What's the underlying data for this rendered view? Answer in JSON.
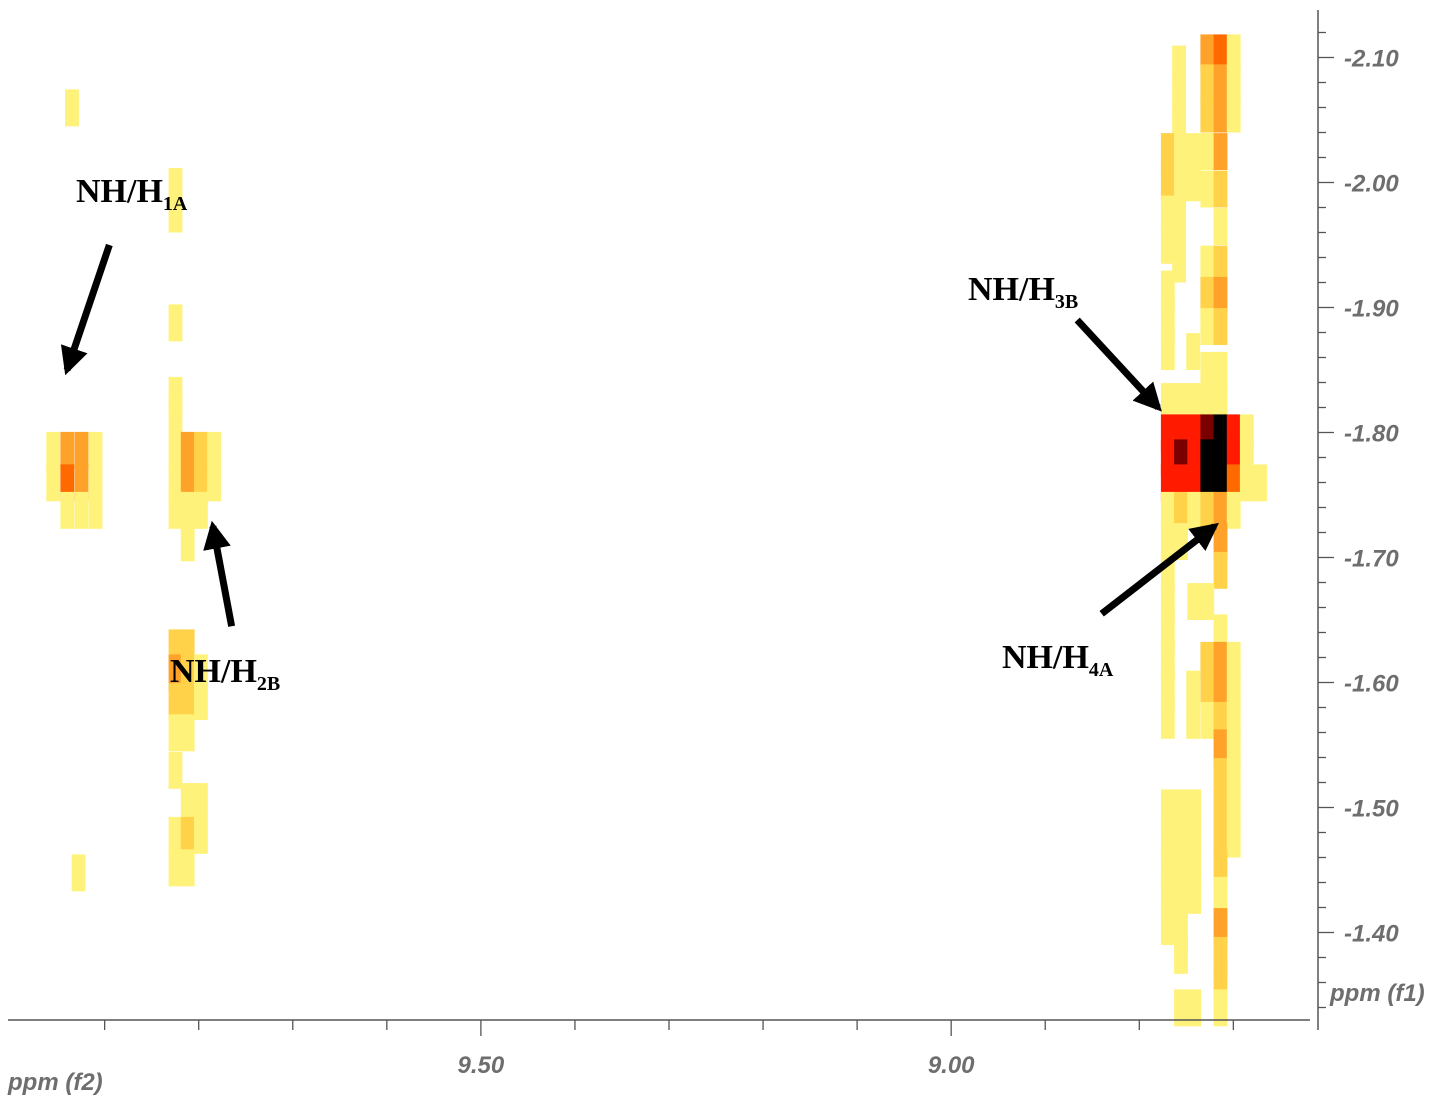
{
  "chart_data": {
    "type": "heatmap",
    "title": "",
    "xlabel": "ppm (f2)",
    "ylabel": "ppm (f1)",
    "x_axis": {
      "range": [
        9.99,
        8.61
      ],
      "direction": "reversed",
      "tick_labels": [
        "9.50",
        "9.00"
      ],
      "tick_values": [
        9.5,
        9.0
      ]
    },
    "y_axis": {
      "range": [
        -2.13,
        -1.33
      ],
      "side": "right",
      "tick_labels": [
        "-2.10",
        "-2.00",
        "-1.90",
        "-1.80",
        "-1.70",
        "-1.60",
        "-1.50",
        "-1.40"
      ],
      "tick_values": [
        -2.1,
        -2.0,
        -1.9,
        -1.8,
        -1.7,
        -1.6,
        -1.5,
        -1.4
      ]
    },
    "grid": false,
    "cell": {
      "dx": 0.014,
      "dy": 0.029
    },
    "colors": {
      "level1": "#fff27a",
      "level2": "#ffd24a",
      "level3": "#ffa22a",
      "level4": "#ff6a00",
      "level5": "#ff1a00",
      "level6": "#7a0000",
      "level7": "#000000",
      "tick": "#555555",
      "text": "#6e6e6e"
    },
    "cells": [
      [
        9.935,
        -2.06,
        1
      ],
      [
        9.825,
        -1.997,
        1
      ],
      [
        9.825,
        -1.975,
        1
      ],
      [
        9.825,
        -1.888,
        1
      ],
      [
        9.825,
        -1.83,
        1
      ],
      [
        9.825,
        -1.815,
        1
      ],
      [
        9.955,
        -1.786,
        1
      ],
      [
        9.94,
        -1.786,
        3
      ],
      [
        9.925,
        -1.786,
        3
      ],
      [
        9.91,
        -1.786,
        1
      ],
      [
        9.955,
        -1.76,
        1
      ],
      [
        9.94,
        -1.76,
        4
      ],
      [
        9.925,
        -1.76,
        3
      ],
      [
        9.91,
        -1.76,
        1
      ],
      [
        9.94,
        -1.738,
        1
      ],
      [
        9.925,
        -1.738,
        1
      ],
      [
        9.91,
        -1.738,
        1
      ],
      [
        9.825,
        -1.786,
        1
      ],
      [
        9.812,
        -1.786,
        3
      ],
      [
        9.798,
        -1.786,
        2
      ],
      [
        9.784,
        -1.786,
        1
      ],
      [
        9.825,
        -1.76,
        1
      ],
      [
        9.812,
        -1.76,
        3
      ],
      [
        9.798,
        -1.76,
        2
      ],
      [
        9.784,
        -1.76,
        1
      ],
      [
        9.825,
        -1.738,
        1
      ],
      [
        9.812,
        -1.738,
        1
      ],
      [
        9.798,
        -1.738,
        1
      ],
      [
        9.812,
        -1.712,
        1
      ],
      [
        9.825,
        -1.628,
        2
      ],
      [
        9.812,
        -1.628,
        2
      ],
      [
        9.825,
        -1.608,
        3
      ],
      [
        9.812,
        -1.608,
        2
      ],
      [
        9.798,
        -1.608,
        1
      ],
      [
        9.825,
        -1.585,
        2
      ],
      [
        9.812,
        -1.585,
        2
      ],
      [
        9.798,
        -1.585,
        1
      ],
      [
        9.825,
        -1.56,
        1
      ],
      [
        9.812,
        -1.56,
        1
      ],
      [
        9.825,
        -1.53,
        1
      ],
      [
        9.812,
        -1.505,
        1
      ],
      [
        9.798,
        -1.505,
        1
      ],
      [
        9.825,
        -1.478,
        1
      ],
      [
        9.812,
        -1.478,
        2
      ],
      [
        9.798,
        -1.478,
        1
      ],
      [
        9.825,
        -1.452,
        1
      ],
      [
        9.812,
        -1.452,
        1
      ],
      [
        9.928,
        -1.448,
        1
      ],
      [
        8.758,
        -2.095,
        1
      ],
      [
        8.758,
        -2.07,
        1
      ],
      [
        8.758,
        -2.045,
        1
      ],
      [
        8.758,
        -2.02,
        1
      ],
      [
        8.758,
        -1.99,
        1
      ],
      [
        8.758,
        -1.962,
        1
      ],
      [
        8.758,
        -1.935,
        1
      ],
      [
        8.77,
        -2.025,
        2
      ],
      [
        8.77,
        -2.0,
        2
      ],
      [
        8.77,
        -1.975,
        1
      ],
      [
        8.77,
        -1.95,
        1
      ],
      [
        8.756,
        -2.025,
        1
      ],
      [
        8.756,
        -2.0,
        1
      ],
      [
        8.742,
        -2.025,
        1
      ],
      [
        8.742,
        -2.0,
        1
      ],
      [
        8.77,
        -1.915,
        1
      ],
      [
        8.77,
        -1.89,
        1
      ],
      [
        8.77,
        -1.865,
        1
      ],
      [
        8.743,
        -1.865,
        1
      ],
      [
        8.728,
        -2.104,
        3
      ],
      [
        8.714,
        -2.104,
        4
      ],
      [
        8.7,
        -2.104,
        1
      ],
      [
        8.728,
        -2.08,
        2
      ],
      [
        8.714,
        -2.08,
        3
      ],
      [
        8.7,
        -2.08,
        1
      ],
      [
        8.728,
        -2.055,
        2
      ],
      [
        8.714,
        -2.055,
        3
      ],
      [
        8.7,
        -2.055,
        1
      ],
      [
        8.728,
        -2.025,
        1
      ],
      [
        8.714,
        -2.025,
        3
      ],
      [
        8.728,
        -1.995,
        1
      ],
      [
        8.714,
        -1.995,
        2
      ],
      [
        8.714,
        -1.965,
        1
      ],
      [
        8.728,
        -1.935,
        1
      ],
      [
        8.714,
        -1.935,
        2
      ],
      [
        8.728,
        -1.91,
        2
      ],
      [
        8.714,
        -1.91,
        3
      ],
      [
        8.728,
        -1.885,
        1
      ],
      [
        8.714,
        -1.885,
        2
      ],
      [
        8.728,
        -1.85,
        1
      ],
      [
        8.714,
        -1.85,
        1
      ],
      [
        8.77,
        -1.825,
        1
      ],
      [
        8.756,
        -1.825,
        1
      ],
      [
        8.742,
        -1.825,
        1
      ],
      [
        8.728,
        -1.825,
        1
      ],
      [
        8.714,
        -1.825,
        1
      ],
      [
        8.77,
        -1.8,
        5
      ],
      [
        8.756,
        -1.8,
        5
      ],
      [
        8.742,
        -1.8,
        5
      ],
      [
        8.728,
        -1.8,
        6
      ],
      [
        8.714,
        -1.8,
        7
      ],
      [
        8.7,
        -1.8,
        5
      ],
      [
        8.686,
        -1.8,
        1
      ],
      [
        8.77,
        -1.78,
        5
      ],
      [
        8.756,
        -1.78,
        6
      ],
      [
        8.742,
        -1.78,
        5
      ],
      [
        8.728,
        -1.78,
        7
      ],
      [
        8.714,
        -1.78,
        7
      ],
      [
        8.7,
        -1.78,
        5
      ],
      [
        8.686,
        -1.78,
        1
      ],
      [
        8.77,
        -1.76,
        5
      ],
      [
        8.756,
        -1.76,
        5
      ],
      [
        8.742,
        -1.76,
        5
      ],
      [
        8.728,
        -1.76,
        7
      ],
      [
        8.714,
        -1.76,
        7
      ],
      [
        8.7,
        -1.76,
        4
      ],
      [
        8.686,
        -1.76,
        1
      ],
      [
        8.672,
        -1.76,
        1
      ],
      [
        8.77,
        -1.738,
        1
      ],
      [
        8.756,
        -1.738,
        2
      ],
      [
        8.742,
        -1.738,
        1
      ],
      [
        8.728,
        -1.738,
        2
      ],
      [
        8.714,
        -1.738,
        3
      ],
      [
        8.7,
        -1.738,
        1
      ],
      [
        8.77,
        -1.713,
        1
      ],
      [
        8.756,
        -1.713,
        1
      ],
      [
        8.714,
        -1.713,
        3
      ],
      [
        8.77,
        -1.69,
        1
      ],
      [
        8.714,
        -1.69,
        2
      ],
      [
        8.77,
        -1.665,
        1
      ],
      [
        8.742,
        -1.665,
        1
      ],
      [
        8.728,
        -1.665,
        1
      ],
      [
        8.77,
        -1.64,
        1
      ],
      [
        8.714,
        -1.64,
        1
      ],
      [
        8.77,
        -1.618,
        1
      ],
      [
        8.728,
        -1.618,
        2
      ],
      [
        8.714,
        -1.618,
        3
      ],
      [
        8.7,
        -1.618,
        1
      ],
      [
        8.77,
        -1.595,
        1
      ],
      [
        8.743,
        -1.595,
        1
      ],
      [
        8.728,
        -1.595,
        2
      ],
      [
        8.714,
        -1.595,
        3
      ],
      [
        8.7,
        -1.595,
        1
      ],
      [
        8.77,
        -1.57,
        1
      ],
      [
        8.743,
        -1.57,
        1
      ],
      [
        8.728,
        -1.57,
        1
      ],
      [
        8.714,
        -1.57,
        2
      ],
      [
        8.7,
        -1.57,
        1
      ],
      [
        8.714,
        -1.548,
        3
      ],
      [
        8.7,
        -1.548,
        1
      ],
      [
        8.714,
        -1.525,
        2
      ],
      [
        8.7,
        -1.525,
        1
      ],
      [
        8.77,
        -1.5,
        1
      ],
      [
        8.756,
        -1.5,
        1
      ],
      [
        8.742,
        -1.5,
        1
      ],
      [
        8.714,
        -1.5,
        2
      ],
      [
        8.7,
        -1.5,
        1
      ],
      [
        8.77,
        -1.475,
        1
      ],
      [
        8.756,
        -1.475,
        1
      ],
      [
        8.742,
        -1.475,
        1
      ],
      [
        8.714,
        -1.475,
        2
      ],
      [
        8.7,
        -1.475,
        1
      ],
      [
        8.77,
        -1.452,
        1
      ],
      [
        8.756,
        -1.452,
        1
      ],
      [
        8.742,
        -1.452,
        1
      ],
      [
        8.714,
        -1.452,
        2
      ],
      [
        8.77,
        -1.43,
        1
      ],
      [
        8.756,
        -1.43,
        1
      ],
      [
        8.742,
        -1.43,
        1
      ],
      [
        8.714,
        -1.43,
        1
      ],
      [
        8.77,
        -1.405,
        1
      ],
      [
        8.756,
        -1.405,
        1
      ],
      [
        8.714,
        -1.405,
        3
      ],
      [
        8.756,
        -1.382,
        1
      ],
      [
        8.714,
        -1.382,
        2
      ],
      [
        8.714,
        -1.36,
        2
      ],
      [
        8.756,
        -1.34,
        1
      ],
      [
        8.742,
        -1.34,
        1
      ],
      [
        8.714,
        -1.34,
        1
      ]
    ],
    "annotations": [
      {
        "main": "NH/H",
        "sub": "1A",
        "tip": [
          9.94,
          -1.85
        ],
        "tail": [
          9.895,
          -1.95
        ]
      },
      {
        "main": "NH/H",
        "sub": "2B",
        "tip": [
          9.785,
          -1.725
        ],
        "tail": [
          9.765,
          -1.645
        ]
      },
      {
        "main": "NH/H",
        "sub": "3B",
        "tip": [
          8.78,
          -1.82
        ],
        "tail": [
          8.866,
          -1.89
        ]
      },
      {
        "main": "NH/H",
        "sub": "4A",
        "tip": [
          8.72,
          -1.725
        ],
        "tail": [
          8.84,
          -1.655
        ]
      }
    ]
  }
}
